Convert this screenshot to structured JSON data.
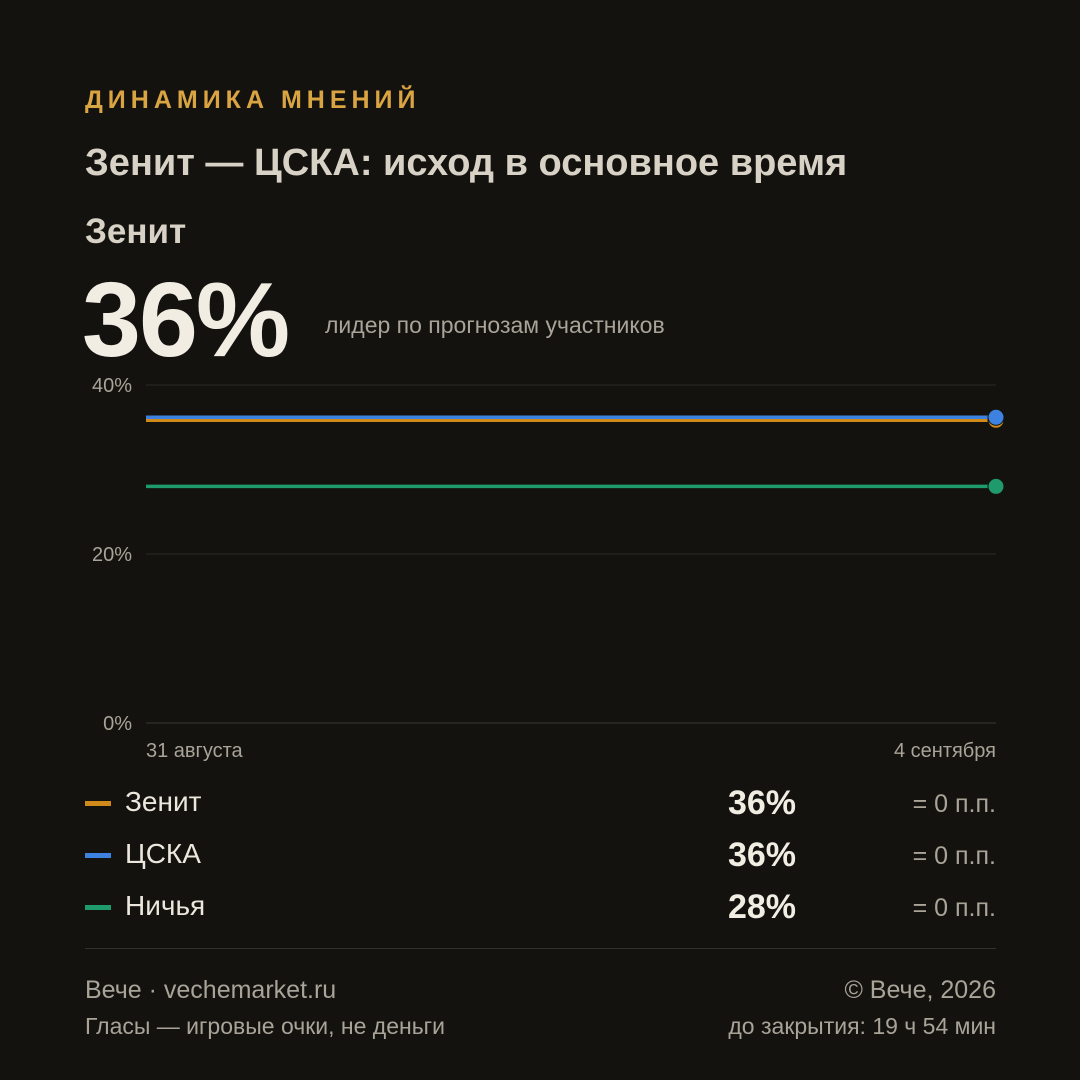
{
  "header": {
    "kicker": "ДИНАМИКА МНЕНИЙ",
    "title": "Зенит — ЦСКА: исход в основное время",
    "leader_name": "Зенит",
    "leader_pct": "36%",
    "leader_caption": "лидер по прогнозам участников"
  },
  "chart_data": {
    "type": "line",
    "x": [
      "31 августа",
      "4 сентября"
    ],
    "ylim": [
      0,
      40
    ],
    "yticks": [
      0,
      20,
      40
    ],
    "ytick_labels": [
      "0%",
      "20%",
      "40%"
    ],
    "grid": true,
    "series": [
      {
        "name": "Зенит",
        "values": [
          36,
          36
        ],
        "color": "#d08a1a"
      },
      {
        "name": "ЦСКА",
        "values": [
          36,
          36
        ],
        "color": "#3d82e0"
      },
      {
        "name": "Ничья",
        "values": [
          28,
          28
        ],
        "color": "#1f9a6c"
      }
    ]
  },
  "legend": [
    {
      "name": "Зенит",
      "value": "36%",
      "delta": "= 0 п.п.",
      "color": "#d08a1a"
    },
    {
      "name": "ЦСКА",
      "value": "36%",
      "delta": "= 0 п.п.",
      "color": "#3d82e0"
    },
    {
      "name": "Ничья",
      "value": "28%",
      "delta": "= 0 п.п.",
      "color": "#1f9a6c"
    }
  ],
  "footer": {
    "brand": "Вече · vechemarket.ru",
    "note": "Гласы — игровые очки, не деньги",
    "copyright": "© Вече, 2026",
    "closing": "до закрытия: 19 ч 54 мин"
  }
}
